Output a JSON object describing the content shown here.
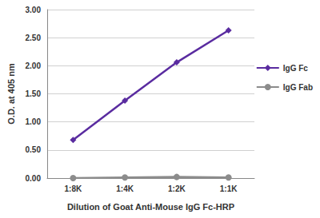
{
  "chart_data": {
    "type": "line",
    "categories": [
      "1:8K",
      "1:4K",
      "1:2K",
      "1:1K"
    ],
    "series": [
      {
        "name": "IgG Fc",
        "color": "#5a2ca0",
        "marker": "diamond",
        "values": [
          0.68,
          1.38,
          2.06,
          2.63
        ]
      },
      {
        "name": "IgG Fab",
        "color": "#8c8c8c",
        "marker": "circle",
        "values": [
          0.0,
          0.01,
          0.02,
          0.01
        ]
      }
    ],
    "x_label": "Dilution of Goat Anti-Mouse IgG Fc-HRP",
    "y_label": "O.D. at 405 nm",
    "ylim": [
      0,
      3
    ],
    "yticks": [
      {
        "value": 0,
        "label": "0.00"
      },
      {
        "value": 0.5,
        "label": "0.50"
      },
      {
        "value": 1,
        "label": "1.00"
      },
      {
        "value": 1.5,
        "label": "1.50"
      },
      {
        "value": 2,
        "label": "2.00"
      },
      {
        "value": 2.5,
        "label": "2.50"
      },
      {
        "value": 3,
        "label": "3.00"
      }
    ],
    "grid": true,
    "legend": "right"
  }
}
